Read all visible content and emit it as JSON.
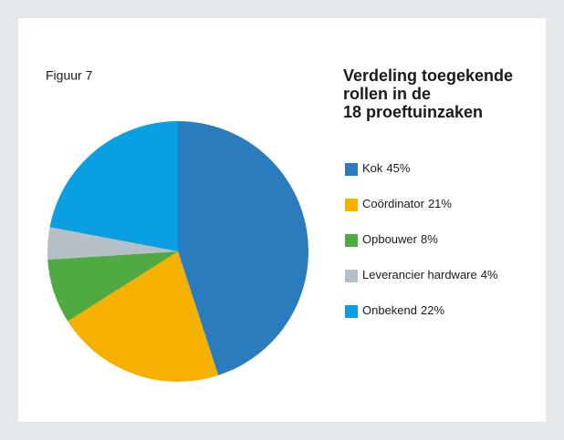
{
  "chart_data": {
    "type": "pie",
    "label": "Figuur 7",
    "title": [
      "Verdeling toegekende",
      "rollen in de",
      "18 proeftuinzaken"
    ],
    "categories": [
      "Kok",
      "Coördinator",
      "Opbouwer",
      "Leverancier hardware",
      "Onbekend"
    ],
    "values": [
      45,
      21,
      8,
      4,
      22
    ],
    "value_labels": [
      "45%",
      "21%",
      "8%",
      "4%",
      "22%"
    ],
    "colors": [
      "#2b7cbd",
      "#f6b000",
      "#4faa41",
      "#b6bfc6",
      "#0a9fe0"
    ]
  }
}
